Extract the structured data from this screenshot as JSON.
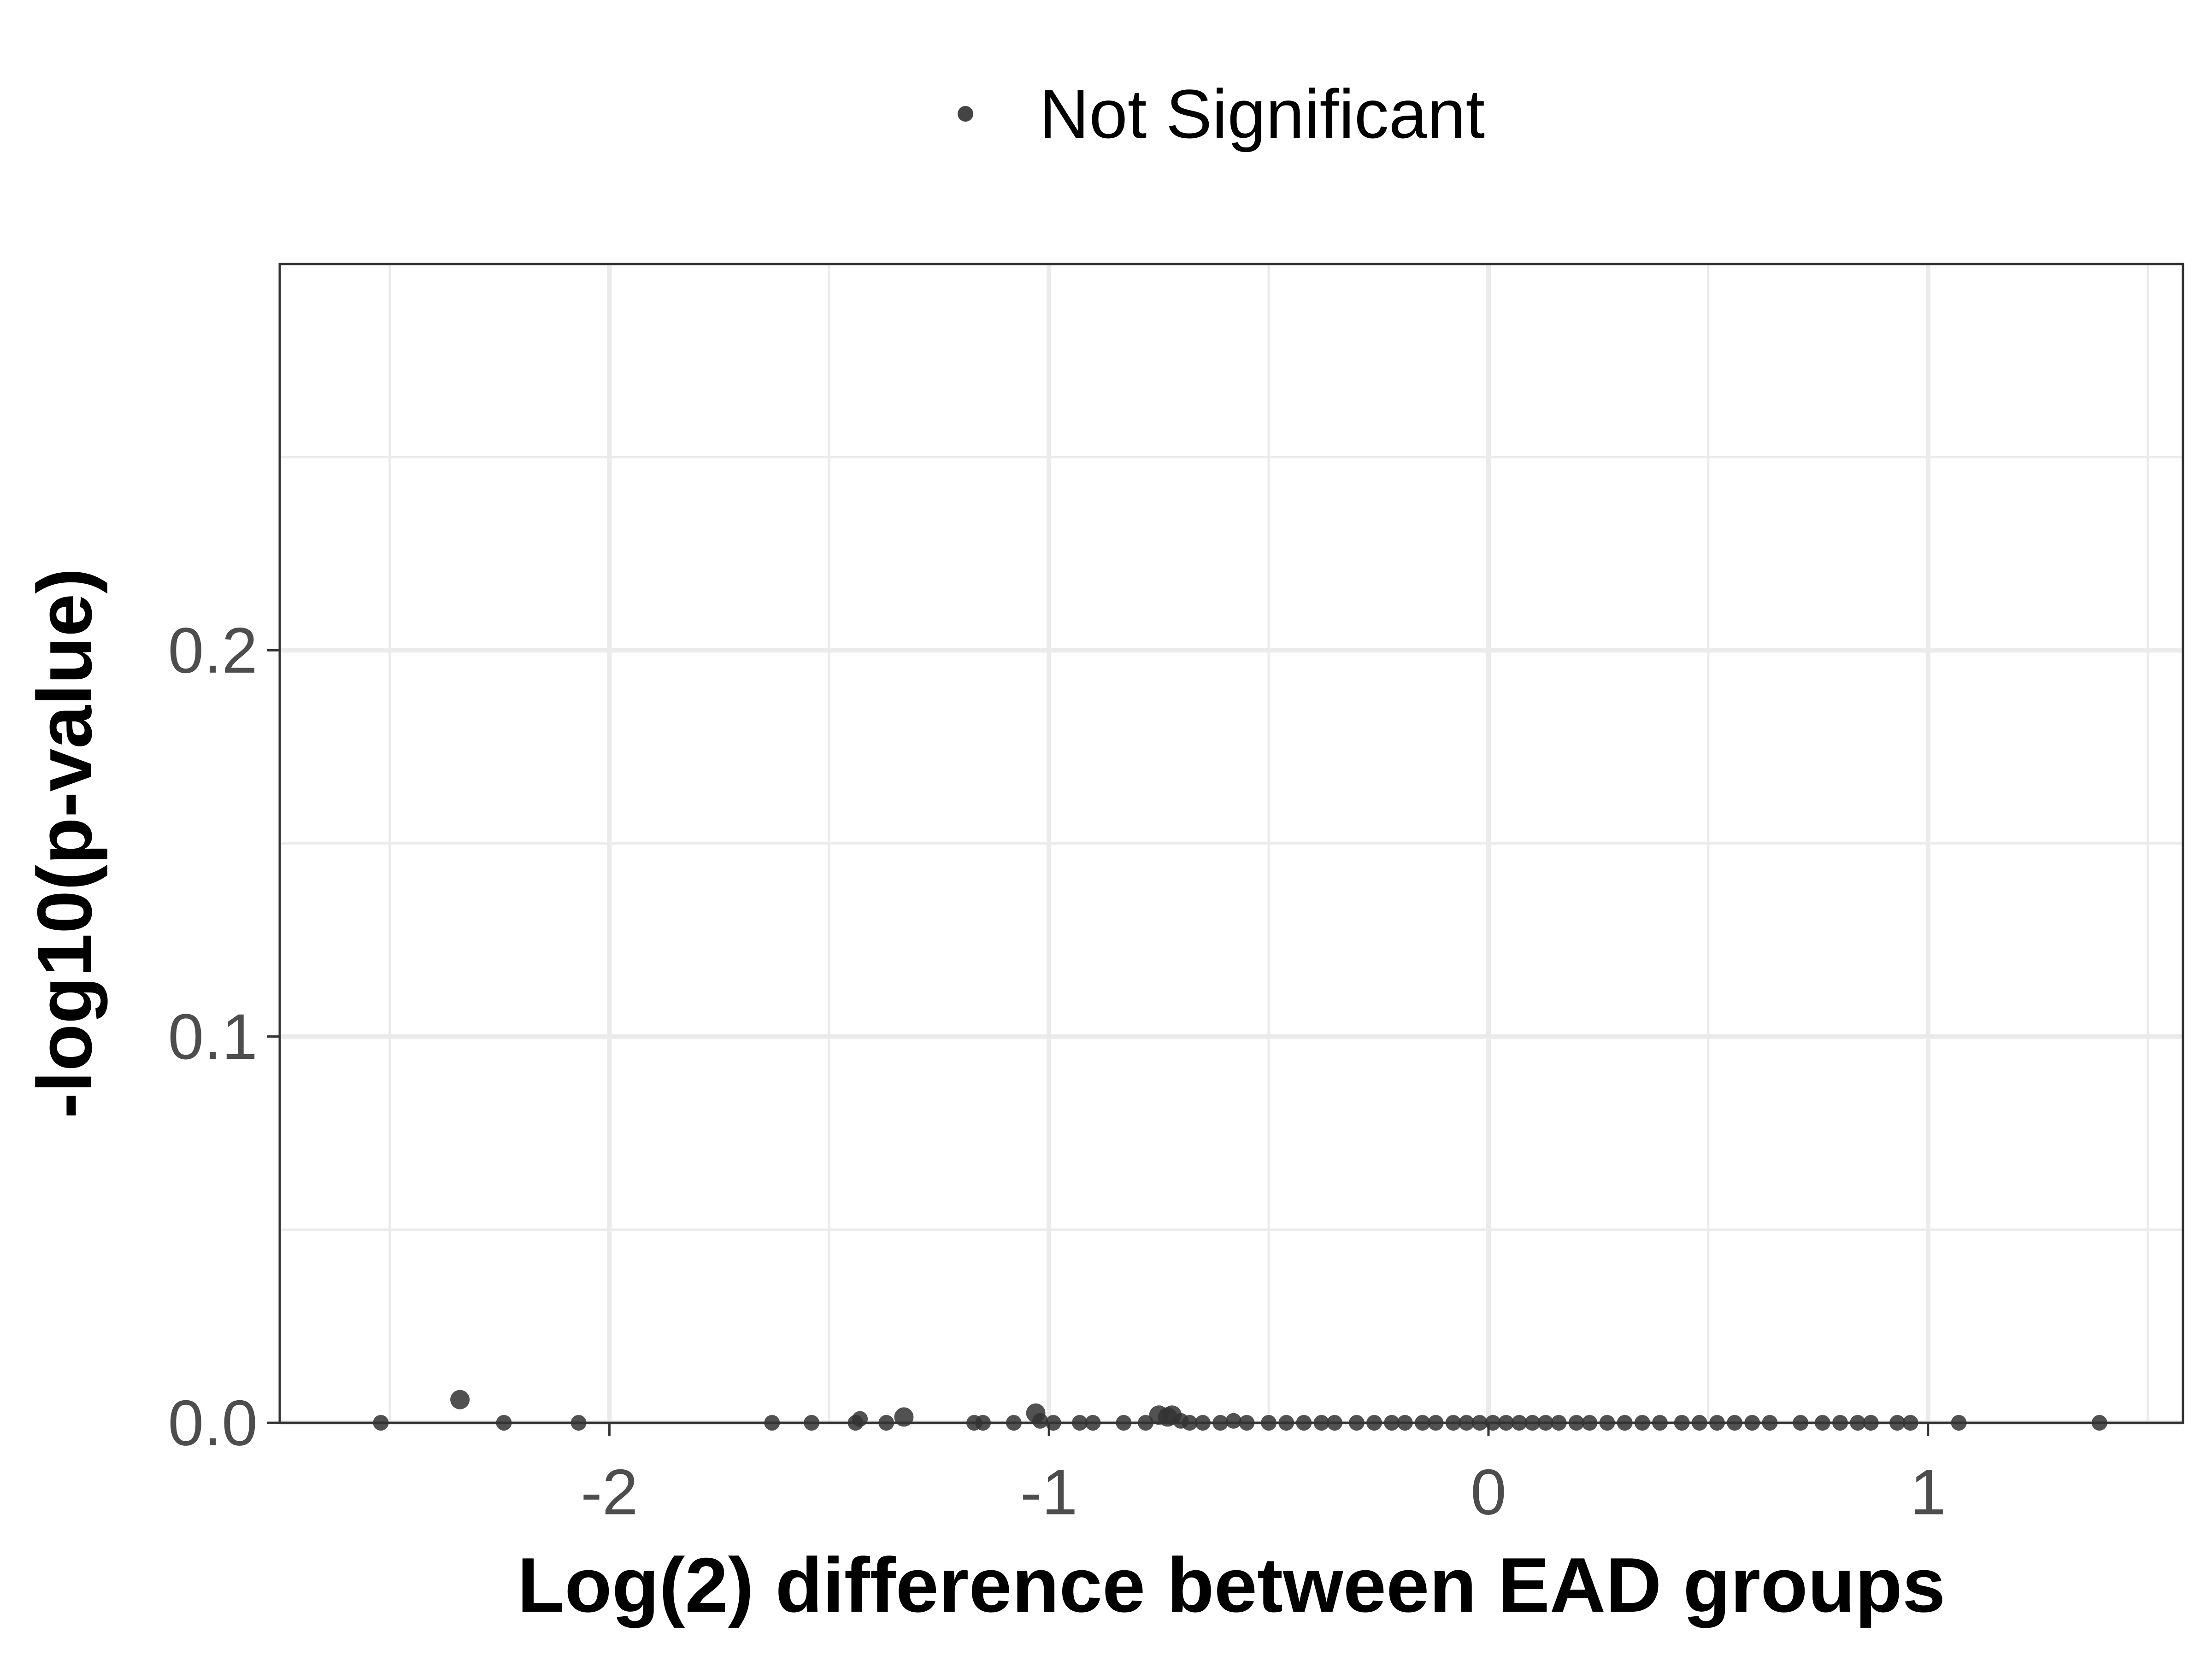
{
  "legend": {
    "label": "Not Significant",
    "position": "top",
    "marker_color": "#444444"
  },
  "chart_data": {
    "type": "scatter",
    "xlabel": "Log(2) difference between EAD groups",
    "ylabel": "-log10(p-value)",
    "xlim": [
      -2.75,
      1.58
    ],
    "ylim": [
      0,
      0.3
    ],
    "x_ticks": [
      -2,
      -1,
      0,
      1
    ],
    "x_tick_labels": [
      "-2",
      "-1",
      "0",
      "1"
    ],
    "y_ticks": [
      0.0,
      0.1,
      0.2
    ],
    "y_tick_labels": [
      "0.0",
      "0.1",
      "0.2"
    ],
    "x_minor_ticks": [
      -2.5,
      -1.5,
      -0.5,
      0.5,
      1.5
    ],
    "y_minor_ticks": [
      0.05,
      0.15,
      0.25
    ],
    "grid": true,
    "point_color": "#333333",
    "series": [
      {
        "name": "Not Significant",
        "points": [
          {
            "x": -2.52,
            "y": 0.0
          },
          {
            "x": -2.34,
            "y": 0.006
          },
          {
            "x": -2.24,
            "y": 0.0
          },
          {
            "x": -2.07,
            "y": 0.0
          },
          {
            "x": -1.63,
            "y": 0.0
          },
          {
            "x": -1.54,
            "y": 0.0
          },
          {
            "x": -1.44,
            "y": 0.0
          },
          {
            "x": -1.43,
            "y": 0.001
          },
          {
            "x": -1.37,
            "y": 0.0
          },
          {
            "x": -1.33,
            "y": 0.0015
          },
          {
            "x": -1.17,
            "y": 0.0
          },
          {
            "x": -1.15,
            "y": 0.0
          },
          {
            "x": -1.08,
            "y": 0.0
          },
          {
            "x": -1.03,
            "y": 0.0025
          },
          {
            "x": -1.02,
            "y": 0.0005
          },
          {
            "x": -0.99,
            "y": 0.0
          },
          {
            "x": -0.93,
            "y": 0.0
          },
          {
            "x": -0.9,
            "y": 0.0
          },
          {
            "x": -0.83,
            "y": 0.0
          },
          {
            "x": -0.78,
            "y": 0.0
          },
          {
            "x": -0.75,
            "y": 0.002
          },
          {
            "x": -0.73,
            "y": 0.0015
          },
          {
            "x": -0.72,
            "y": 0.002
          },
          {
            "x": -0.7,
            "y": 0.0005
          },
          {
            "x": -0.68,
            "y": 0.0
          },
          {
            "x": -0.65,
            "y": 0.0
          },
          {
            "x": -0.61,
            "y": 0.0
          },
          {
            "x": -0.58,
            "y": 0.0005
          },
          {
            "x": -0.55,
            "y": 0.0
          },
          {
            "x": -0.5,
            "y": 0.0
          },
          {
            "x": -0.46,
            "y": 0.0
          },
          {
            "x": -0.42,
            "y": 0.0
          },
          {
            "x": -0.38,
            "y": 0.0
          },
          {
            "x": -0.35,
            "y": 0.0
          },
          {
            "x": -0.3,
            "y": 0.0
          },
          {
            "x": -0.26,
            "y": 0.0
          },
          {
            "x": -0.22,
            "y": 0.0
          },
          {
            "x": -0.19,
            "y": 0.0
          },
          {
            "x": -0.15,
            "y": 0.0
          },
          {
            "x": -0.12,
            "y": 0.0
          },
          {
            "x": -0.08,
            "y": 0.0
          },
          {
            "x": -0.05,
            "y": 0.0
          },
          {
            "x": -0.02,
            "y": 0.0
          },
          {
            "x": 0.01,
            "y": 0.0
          },
          {
            "x": 0.04,
            "y": 0.0
          },
          {
            "x": 0.07,
            "y": 0.0
          },
          {
            "x": 0.1,
            "y": 0.0
          },
          {
            "x": 0.13,
            "y": 0.0
          },
          {
            "x": 0.16,
            "y": 0.0
          },
          {
            "x": 0.2,
            "y": 0.0
          },
          {
            "x": 0.23,
            "y": 0.0
          },
          {
            "x": 0.27,
            "y": 0.0
          },
          {
            "x": 0.31,
            "y": 0.0
          },
          {
            "x": 0.35,
            "y": 0.0
          },
          {
            "x": 0.39,
            "y": 0.0
          },
          {
            "x": 0.44,
            "y": 0.0
          },
          {
            "x": 0.48,
            "y": 0.0
          },
          {
            "x": 0.52,
            "y": 0.0
          },
          {
            "x": 0.56,
            "y": 0.0
          },
          {
            "x": 0.6,
            "y": 0.0
          },
          {
            "x": 0.64,
            "y": 0.0
          },
          {
            "x": 0.71,
            "y": 0.0
          },
          {
            "x": 0.76,
            "y": 0.0
          },
          {
            "x": 0.8,
            "y": 0.0
          },
          {
            "x": 0.84,
            "y": 0.0
          },
          {
            "x": 0.87,
            "y": 0.0
          },
          {
            "x": 0.93,
            "y": 0.0
          },
          {
            "x": 0.96,
            "y": 0.0
          },
          {
            "x": 1.07,
            "y": 0.0
          },
          {
            "x": 1.39,
            "y": 0.0
          }
        ]
      }
    ]
  }
}
